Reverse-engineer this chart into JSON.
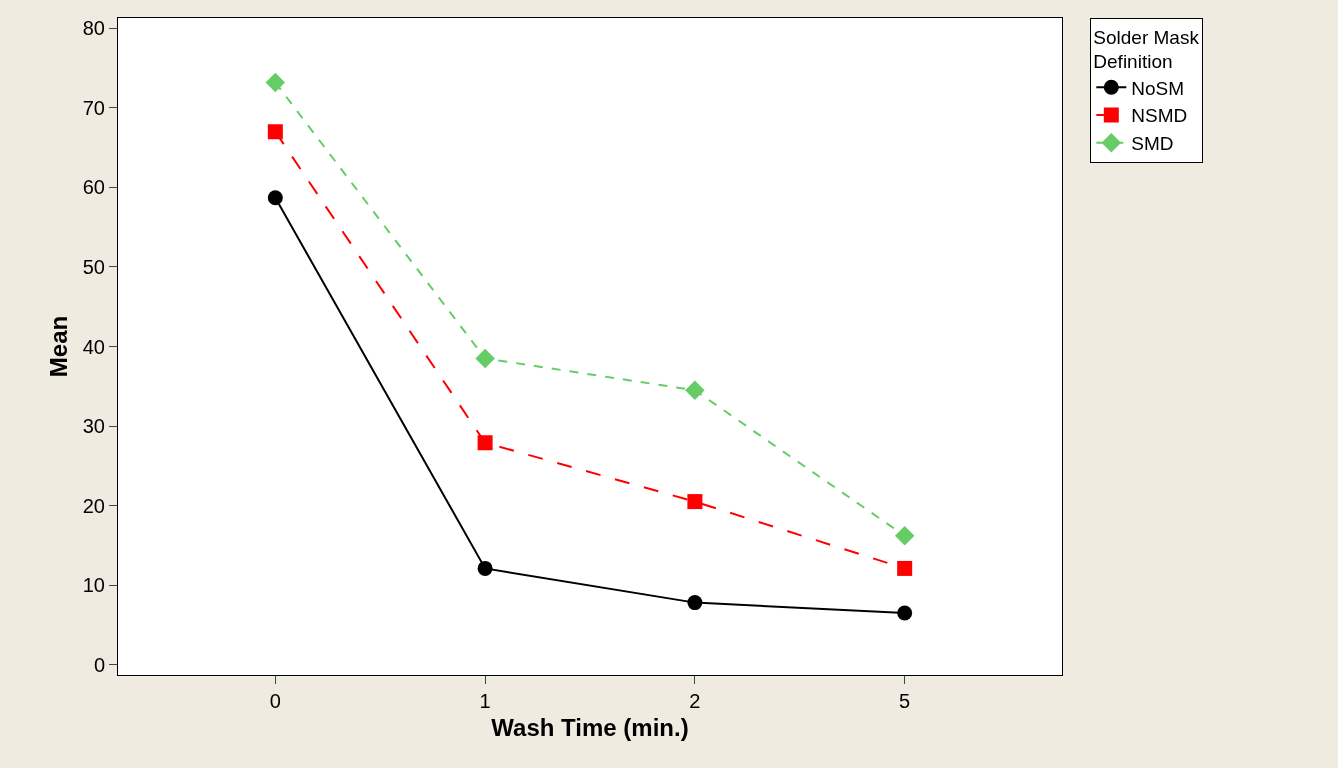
{
  "chart_data": {
    "type": "line",
    "xlabel": "Wash Time (min.)",
    "ylabel": "Mean",
    "legend_title": "Solder Mask Definition",
    "legend": "top right",
    "categories": [
      "0",
      "1",
      "2",
      "5"
    ],
    "ylim": [
      -1.3,
      81.3
    ],
    "yticks": [
      0,
      10,
      20,
      30,
      40,
      50,
      60,
      70,
      80
    ],
    "series": [
      {
        "name": "NoSM",
        "color": "#000000",
        "marker": "circle",
        "line_style": "solid",
        "values": [
          58.7,
          12.1,
          7.8,
          6.5
        ]
      },
      {
        "name": "NSMD",
        "color": "#ff0000",
        "marker": "square",
        "line_style": "dashed",
        "values": [
          67.0,
          27.9,
          20.5,
          12.1
        ]
      },
      {
        "name": "SMD",
        "color": "#66cc66",
        "marker": "diamond",
        "line_style": "dotted",
        "values": [
          73.2,
          38.5,
          34.5,
          16.2
        ]
      }
    ]
  }
}
